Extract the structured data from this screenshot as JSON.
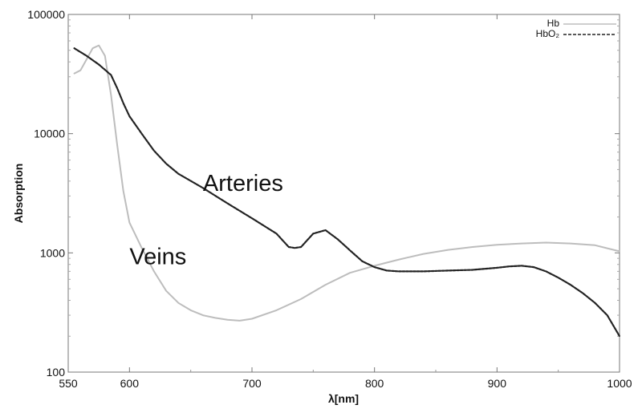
{
  "chart_data": {
    "type": "line",
    "title": "",
    "xlabel": "λ[nm]",
    "ylabel": "Absorption",
    "xlim": [
      550,
      1000
    ],
    "ylim": [
      100,
      100000
    ],
    "yscale": "log",
    "grid": false,
    "legend_position": "top-right",
    "x_ticks": [
      550,
      600,
      700,
      800,
      900,
      1000
    ],
    "x_tick_labels": [
      "550",
      "600",
      "700",
      "800",
      "900",
      "1000"
    ],
    "y_ticks": [
      100,
      1000,
      10000,
      100000
    ],
    "y_tick_labels": [
      "100",
      "1000",
      "10000",
      "100000"
    ],
    "series": [
      {
        "name": "Hb",
        "color": "#bdbdbd",
        "dash": "solid",
        "x": [
          555,
          560,
          565,
          570,
          575,
          580,
          585,
          590,
          595,
          600,
          610,
          620,
          630,
          640,
          650,
          660,
          670,
          680,
          690,
          700,
          720,
          740,
          760,
          780,
          800,
          820,
          840,
          860,
          880,
          900,
          920,
          940,
          960,
          980,
          1000
        ],
        "y": [
          32000,
          34000,
          42000,
          52000,
          55000,
          45000,
          21000,
          8000,
          3300,
          1800,
          1100,
          700,
          480,
          380,
          330,
          300,
          285,
          275,
          270,
          280,
          330,
          410,
          540,
          680,
          780,
          880,
          980,
          1060,
          1120,
          1170,
          1200,
          1220,
          1200,
          1160,
          1030
        ]
      },
      {
        "name": "HbO₂",
        "color": "#222222",
        "dash": "dashed",
        "x": [
          555,
          565,
          575,
          585,
          590,
          595,
          600,
          610,
          620,
          630,
          640,
          660,
          680,
          700,
          720,
          730,
          735,
          740,
          750,
          760,
          770,
          780,
          790,
          800,
          810,
          820,
          840,
          860,
          880,
          900,
          910,
          920,
          930,
          940,
          950,
          960,
          970,
          980,
          990,
          1000
        ],
        "y": [
          52000,
          45000,
          38000,
          31000,
          24000,
          18000,
          14000,
          10000,
          7200,
          5600,
          4600,
          3500,
          2600,
          1950,
          1450,
          1120,
          1100,
          1120,
          1450,
          1550,
          1300,
          1050,
          850,
          760,
          710,
          700,
          700,
          710,
          720,
          750,
          770,
          780,
          760,
          700,
          620,
          540,
          460,
          380,
          300,
          200
        ]
      }
    ],
    "annotations": [
      {
        "text": "Arteries",
        "x": 660,
        "y": 3300
      },
      {
        "text": "Veins",
        "x": 600,
        "y": 800
      }
    ]
  }
}
